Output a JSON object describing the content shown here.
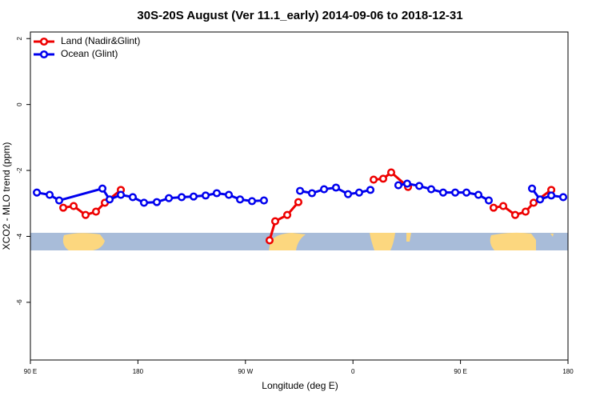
{
  "chart_data": {
    "type": "line",
    "title": "30S-20S August (Ver 11.1_early)   2014-09-06 to 2018-12-31",
    "x_label": "Longitude (deg E)",
    "y_label": "XCO2 - MLO trend (ppm)",
    "xlim": [
      90,
      540
    ],
    "xticks": [
      {
        "value": 90,
        "label": "90 E"
      },
      180,
      {
        "value": 270,
        "label": "90 W"
      },
      {
        "value": 360,
        "label": "0"
      },
      {
        "value": 450,
        "label": "90 E"
      },
      {
        "value": 540,
        "label": "180"
      }
    ],
    "ylim": [
      -7.75,
      2.2
    ],
    "yticks": [
      2,
      0,
      -2,
      -4,
      -6
    ],
    "legend": "top-left",
    "series": [
      {
        "name": "Land (Nadir&Glint)",
        "color": "#ee0000",
        "x": [
          117.5,
          126.2,
          136.2,
          144.9,
          152.3,
          165.7,
          null,
          290.2,
          294.9,
          305.0,
          314.3,
          null,
          377.3,
          385.3,
          392.0,
          406.1,
          null,
          477.7,
          485.8,
          495.8,
          504.5,
          511.2,
          526.0
        ],
        "values": [
          -3.13,
          -3.08,
          -3.35,
          -3.25,
          -2.98,
          -2.59,
          null,
          -4.12,
          -3.54,
          -3.35,
          -2.96,
          null,
          -2.28,
          -2.25,
          -2.06,
          -2.5,
          null,
          -3.13,
          -3.08,
          -3.35,
          -3.25,
          -2.98,
          -2.59
        ]
      },
      {
        "name": "Ocean (Glint)",
        "color": "#0000ee",
        "x": [
          95.4,
          106.1,
          114.1,
          150.3,
          156.3,
          165.7,
          175.7,
          185.1,
          195.8,
          205.9,
          216.6,
          226.6,
          236.7,
          246.0,
          256.1,
          265.5,
          275.5,
          285.5,
          null,
          315.7,
          325.7,
          335.8,
          345.8,
          355.9,
          365.2,
          374.6,
          null,
          398.0,
          405.4,
          415.5,
          425.5,
          435.5,
          445.6,
          455.0,
          465.0,
          473.7,
          null,
          509.9,
          516.6,
          526.0,
          536.0
        ],
        "values": [
          -2.67,
          -2.74,
          -2.91,
          -2.55,
          -2.88,
          -2.74,
          -2.81,
          -2.98,
          -2.96,
          -2.84,
          -2.81,
          -2.79,
          -2.76,
          -2.69,
          -2.74,
          -2.88,
          -2.93,
          -2.91,
          null,
          -2.62,
          -2.69,
          -2.57,
          -2.52,
          -2.72,
          -2.67,
          -2.59,
          null,
          -2.45,
          -2.4,
          -2.47,
          -2.57,
          -2.67,
          -2.67,
          -2.67,
          -2.74,
          -2.91,
          null,
          -2.55,
          -2.88,
          -2.76,
          -2.81
        ]
      }
    ]
  }
}
